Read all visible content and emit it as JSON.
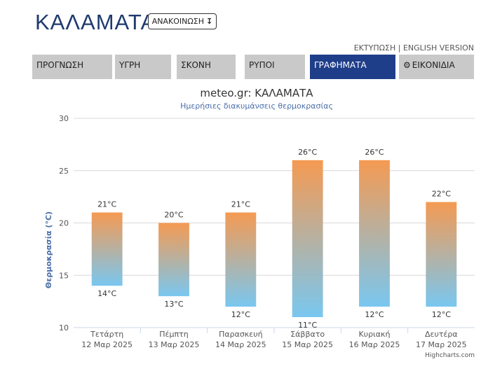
{
  "header": {
    "city": "ΚΑΛΑΜΑΤΑ",
    "announce_label": "ΑΝΑΚΟΙΝΩΣΗ",
    "announce_icon": "arrow-down-icon",
    "print_link": "ΕΚΤΥΠΩΣΗ",
    "separator": " | ",
    "english_link": "ENGLISH VERSION"
  },
  "tabs": [
    {
      "label": "ΠΡΟΓΝΩΣΗ"
    },
    {
      "label": "ΥΓΡΗ"
    },
    {
      "label": "ΣΚΟΝΗ"
    },
    {
      "label": "ΡΥΠΟΙ"
    },
    {
      "label": "ΓΡΑΦΗΜΑΤΑ",
      "active": true
    },
    {
      "label": "ΕΙΚΟΝΙΔΙΑ",
      "icon": "gear-icon"
    }
  ],
  "colors": {
    "accent": "#1f3e8a",
    "tab_bg": "#c9c9c9",
    "bar_top": "#f59a52",
    "bar_bottom": "#79c7f0",
    "axis_text": "#4a6ea9"
  },
  "chart_data": {
    "type": "bar",
    "subtype": "range",
    "title": "meteo.gr: ΚΑΛΑΜΑΤΑ",
    "subtitle": "Ημερήσιες διακυμάνσεις θερμοκρασίας",
    "ylabel": "Θερμοκρασία (°C)",
    "xlabel": "",
    "ylim": [
      10,
      30
    ],
    "yticks": [
      10,
      15,
      20,
      25,
      30
    ],
    "grid": true,
    "legend": "none",
    "unit": "°C",
    "categories": [
      {
        "day": "Τετάρτη",
        "date": "12 Μαρ 2025"
      },
      {
        "day": "Πέμπτη",
        "date": "13 Μαρ 2025"
      },
      {
        "day": "Παρασκευή",
        "date": "14 Μαρ 2025"
      },
      {
        "day": "Σάββατο",
        "date": "15 Μαρ 2025"
      },
      {
        "day": "Κυριακή",
        "date": "16 Μαρ 2025"
      },
      {
        "day": "Δευτέρα",
        "date": "17 Μαρ 2025"
      }
    ],
    "max": [
      21,
      20,
      21,
      26,
      26,
      22
    ],
    "min": [
      14,
      13,
      12,
      11,
      12,
      12
    ],
    "credits": "Highcharts.com"
  }
}
